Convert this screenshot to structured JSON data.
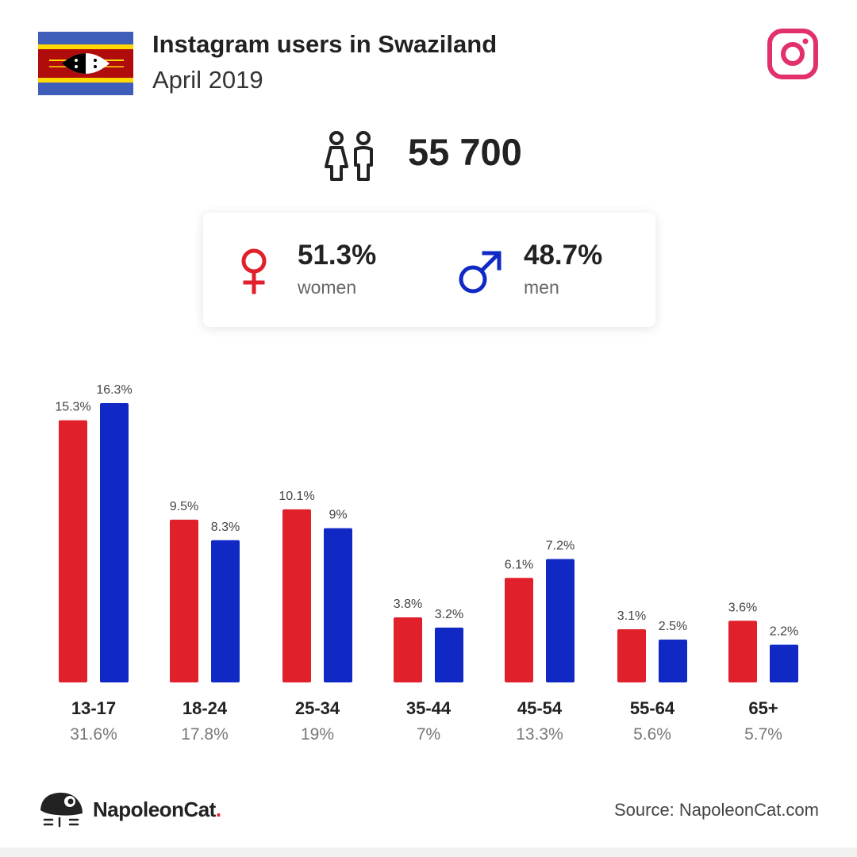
{
  "header": {
    "title": "Instagram users in Swaziland",
    "subtitle": "April 2019"
  },
  "summary": {
    "total_users": "55 700",
    "women_pct": "51.3%",
    "women_label": "women",
    "men_pct": "48.7%",
    "men_label": "men"
  },
  "colors": {
    "women": "#e0202a",
    "men": "#1029c4",
    "instagram": "#e1306c"
  },
  "icons": {
    "flag": "swaziland-flag-icon",
    "brand": "instagram-icon",
    "users": "people-icon",
    "women": "female-symbol-icon",
    "men": "male-symbol-icon",
    "logo": "napoleoncat-logo-icon"
  },
  "chart_data": {
    "type": "bar",
    "categories": [
      "13-17",
      "18-24",
      "25-34",
      "35-44",
      "45-54",
      "55-64",
      "65+"
    ],
    "category_totals": [
      "31.6%",
      "17.8%",
      "19%",
      "7%",
      "13.3%",
      "5.6%",
      "5.7%"
    ],
    "series": [
      {
        "values": [
          15.3,
          9.5,
          10.1,
          3.8,
          6.1,
          3.1,
          3.6
        ],
        "labels": [
          "15.3%",
          "9.5%",
          "10.1%",
          "3.8%",
          "6.1%",
          "3.1%",
          "3.6%"
        ],
        "color": "#e0202a"
      },
      {
        "values": [
          16.3,
          8.3,
          9,
          3.2,
          7.2,
          2.5,
          2.2
        ],
        "labels": [
          "16.3%",
          "8.3%",
          "9%",
          "3.2%",
          "7.2%",
          "2.5%",
          "2.2%"
        ],
        "color": "#1029c4"
      }
    ],
    "ylim": [
      0,
      16.3
    ],
    "grid": false
  },
  "footer": {
    "brand_name": "NapoleonCat",
    "brand_dot": ".",
    "source": "Source: NapoleonCat.com"
  }
}
